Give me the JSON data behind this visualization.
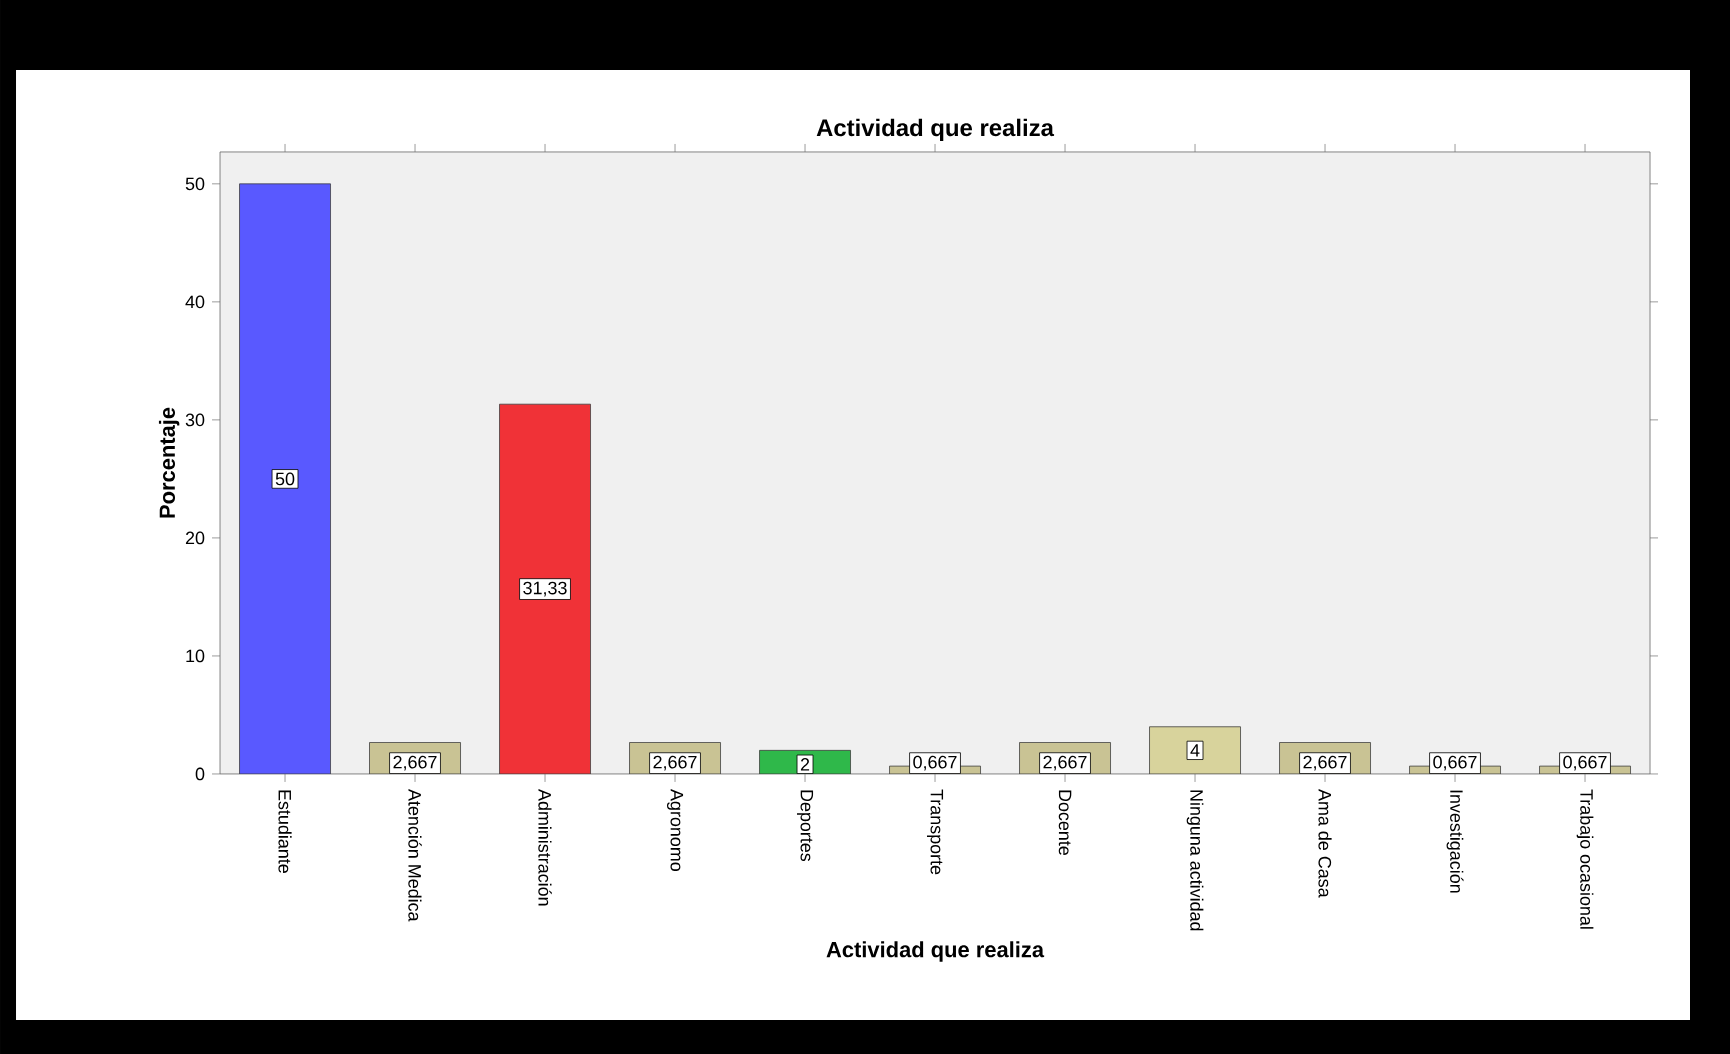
{
  "chart_data": {
    "type": "bar",
    "title": "Actividad que realiza",
    "xlabel": "Actividad que realiza",
    "ylabel": "Porcentaje",
    "categories": [
      "Estudiante",
      "Atención Medica",
      "Administración",
      "Agronomo",
      "Deportes",
      "Transporte",
      "Docente",
      "Ninguna actividad",
      "Ama de Casa",
      "Investigación",
      "Trabajo ocasional"
    ],
    "values": [
      50,
      2.667,
      31.33,
      2.667,
      2,
      0.667,
      2.667,
      4,
      2.667,
      0.667,
      0.667
    ],
    "value_labels": [
      "50",
      "2,667",
      "31,33",
      "2,667",
      "2",
      "0,667",
      "2,667",
      "4",
      "2,667",
      "0,667",
      "0,667"
    ],
    "colors": [
      "#5959ff",
      "#c9c394",
      "#f03237",
      "#c9c394",
      "#2fb84a",
      "#c9c394",
      "#c9c394",
      "#d8d39c",
      "#c9c394",
      "#c9c394",
      "#c9c394"
    ],
    "ylim": [
      0,
      52.7
    ],
    "yticks": [
      0,
      10,
      20,
      30,
      40,
      50
    ]
  }
}
